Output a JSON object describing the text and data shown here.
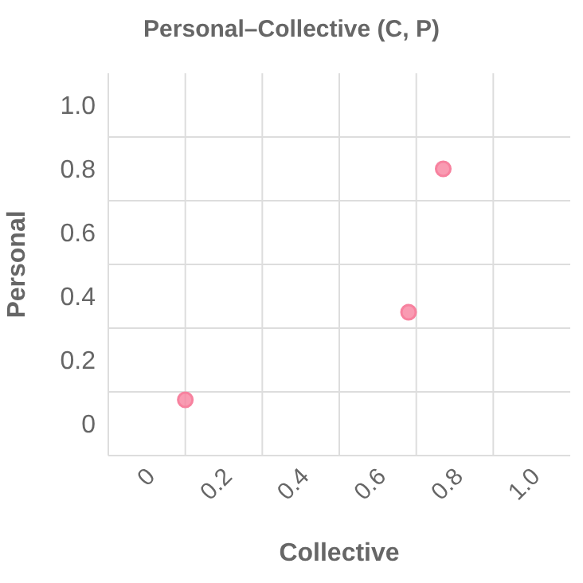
{
  "chart_data": {
    "type": "scatter",
    "title": "Personal–Collective (C, P)",
    "xlabel": "Collective",
    "ylabel": "Personal",
    "x": [
      0.1,
      0.68,
      0.77
    ],
    "series": [
      {
        "color": "#f7829f",
        "values": [
          0.075,
          0.35,
          0.8
        ]
      }
    ],
    "xlim": [
      -0.1,
      1.1
    ],
    "xticks": [
      0,
      0.2,
      0.4,
      0.6,
      0.8,
      {
        "value": 1,
        "label": "1.0"
      }
    ],
    "ylim": [
      -0.1,
      1.1
    ],
    "yticks": [
      0,
      0.2,
      0.4,
      0.6,
      0.8,
      {
        "value": 1,
        "label": "1.0"
      }
    ],
    "grid": true,
    "marker": "circle"
  }
}
